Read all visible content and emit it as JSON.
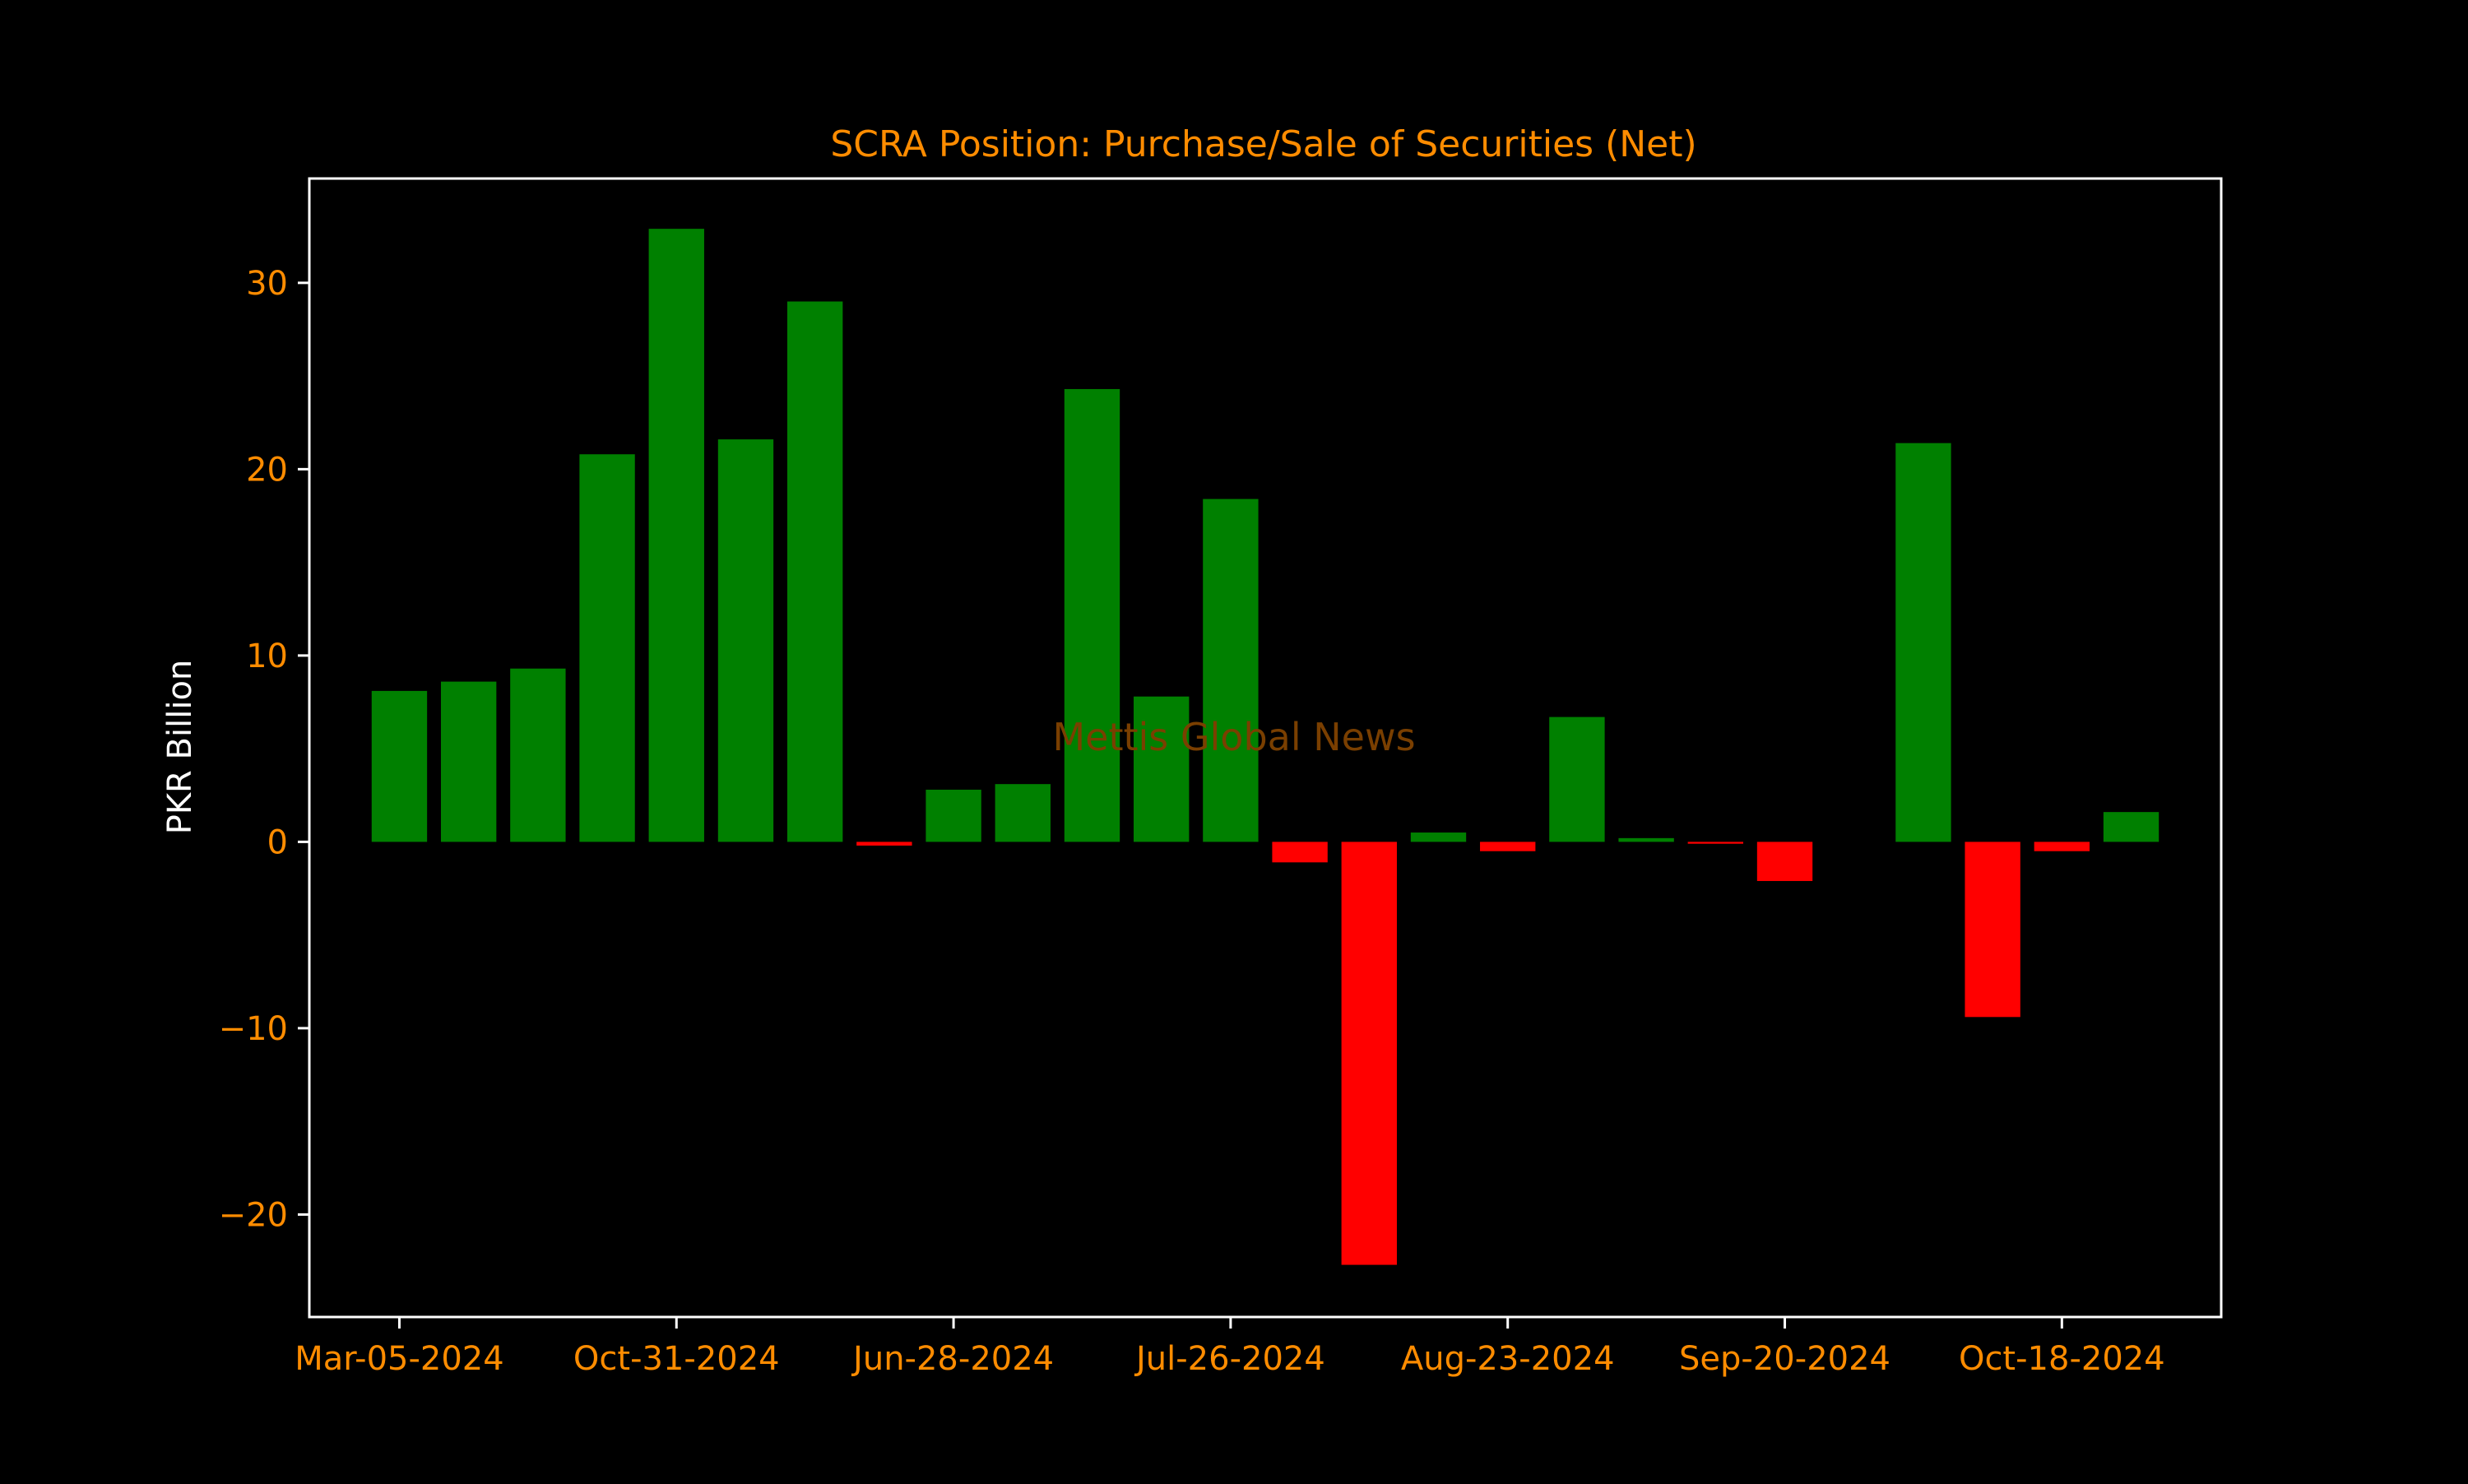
{
  "colors": {
    "background": "#000000",
    "frame": "#ffffff",
    "title": "#ff8c00",
    "tick_label": "#ff8c00",
    "axis_label": "#ffffff",
    "positive_bar": "#008000",
    "negative_bar": "#ff0000",
    "watermark": "#7a3f00"
  },
  "watermark": "Mettis Global News",
  "chart_data": {
    "type": "bar",
    "title": "SCRA Position: Purchase/Sale of Securities (Net)",
    "xlabel": "",
    "ylabel": "PKR Billion",
    "ylim": [
      -25.5,
      35.6
    ],
    "yticks": [
      -20,
      -10,
      0,
      10,
      20,
      30
    ],
    "ytick_labels": [
      "−20",
      "−10",
      "0",
      "10",
      "20",
      "30"
    ],
    "xtick_labels": [
      "Mar-05-2024",
      "Oct-31-2024",
      "Jun-28-2024",
      "Jul-26-2024",
      "Aug-23-2024",
      "Sep-20-2024",
      "Oct-18-2024"
    ],
    "xtick_positions": [
      0,
      4,
      8,
      12,
      16,
      20,
      24
    ],
    "grid": false,
    "legend": "none",
    "bar_count": 26,
    "values": [
      8.1,
      8.6,
      9.3,
      20.8,
      32.9,
      21.6,
      29.0,
      -0.2,
      2.8,
      3.1,
      24.3,
      7.8,
      18.4,
      -1.1,
      -22.7,
      0.5,
      -0.5,
      6.7,
      0.2,
      -0.1,
      -2.1,
      0,
      21.4,
      -9.4,
      -0.5,
      1.6
    ]
  }
}
